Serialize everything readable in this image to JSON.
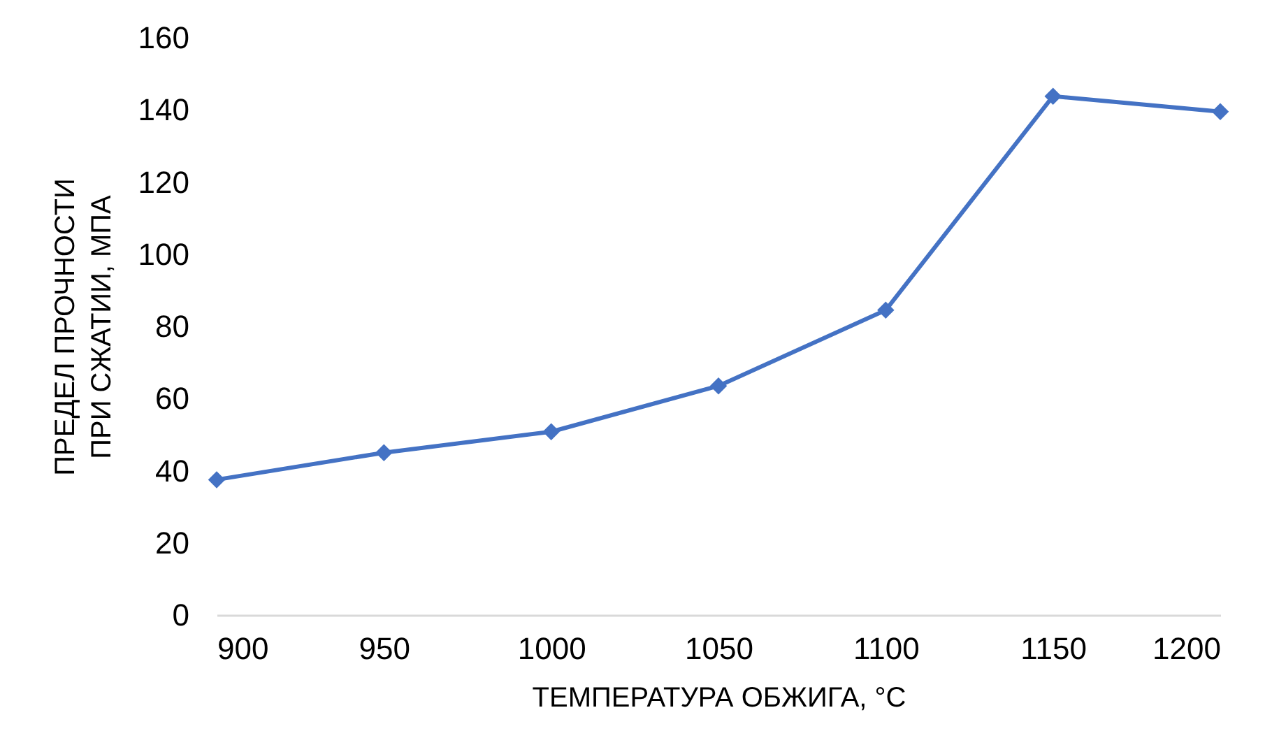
{
  "chart_data": {
    "type": "line",
    "xlabel": "ТЕМПЕРАТУРА ОБЖИГА, °C",
    "ylabel": "ПРЕДЕЛ ПРОЧНОСТИ\nПРИ СЖАТИИ, МПА",
    "x": [
      900,
      950,
      1000,
      1050,
      1100,
      1150,
      1200
    ],
    "series": [
      {
        "color": "#4472c4",
        "values": [
          37.5,
          45,
          50.8,
          63.5,
          84.5,
          143.8,
          139.5
        ]
      }
    ],
    "xlim": [
      900,
      1200
    ],
    "xticks": [
      900,
      950,
      1000,
      1050,
      1100,
      1150,
      1200
    ],
    "ylim": [
      0,
      160
    ],
    "yticks": [
      0,
      20,
      40,
      60,
      80,
      100,
      120,
      140,
      160
    ],
    "grid": false,
    "legend": false,
    "marker": "diamond",
    "line_style": "solid"
  }
}
